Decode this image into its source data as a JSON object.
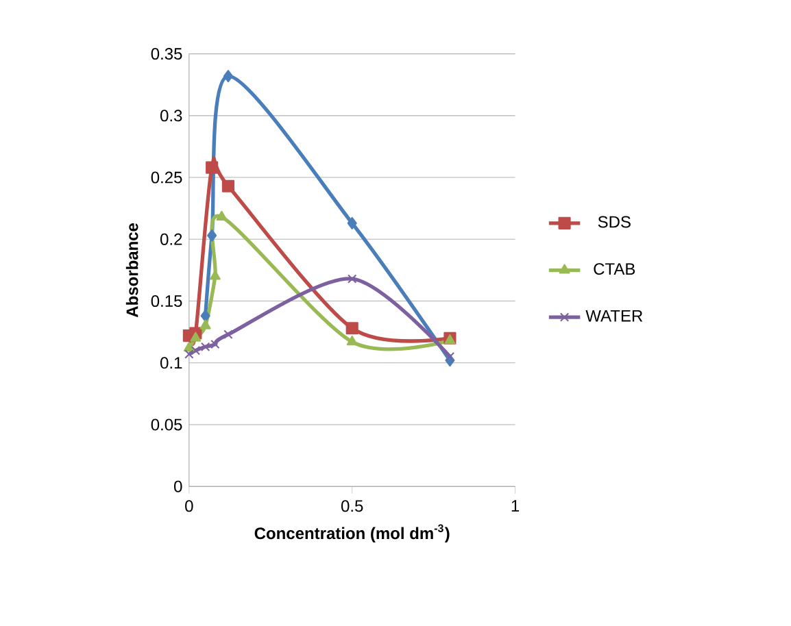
{
  "chart_data": {
    "type": "line",
    "xlabel": "Concentration (mol dm$^{-3}$)",
    "ylabel": "Absorbance",
    "xlim": [
      0,
      1
    ],
    "xticks": [
      0,
      0.5,
      1
    ],
    "ylim": [
      0,
      0.35
    ],
    "yticks": [
      0,
      0.05,
      0.1,
      0.15,
      0.2,
      0.25,
      0.3,
      0.35
    ],
    "grid": "y",
    "legend": "right",
    "line_style": "solid",
    "series": [
      {
        "color": "#4a7ebb",
        "marker": "diamond",
        "x": [
          0.05,
          0.07,
          0.12,
          0.5,
          0.8
        ],
        "values": [
          0.138,
          0.203,
          0.332,
          0.213,
          0.102
        ]
      },
      {
        "name": "SDS",
        "color": "#be4b48",
        "marker": "square",
        "x": [
          0,
          0.02,
          0.07,
          0.12,
          0.5,
          0.8
        ],
        "values": [
          0.122,
          0.124,
          0.258,
          0.243,
          0.128,
          0.12
        ]
      },
      {
        "name": "CTAB",
        "color": "#98b954",
        "marker": "triangle",
        "x": [
          0,
          0.02,
          0.05,
          0.08,
          0.1,
          0.5,
          0.8
        ],
        "values": [
          0.112,
          0.12,
          0.13,
          0.17,
          0.218,
          0.117,
          0.118
        ]
      },
      {
        "name": "WATER",
        "color": "#7d60a0",
        "marker": "cross",
        "x": [
          0,
          0.02,
          0.05,
          0.08,
          0.12,
          0.5,
          0.8
        ],
        "values": [
          0.107,
          0.11,
          0.113,
          0.115,
          0.123,
          0.168,
          0.105
        ]
      }
    ]
  }
}
